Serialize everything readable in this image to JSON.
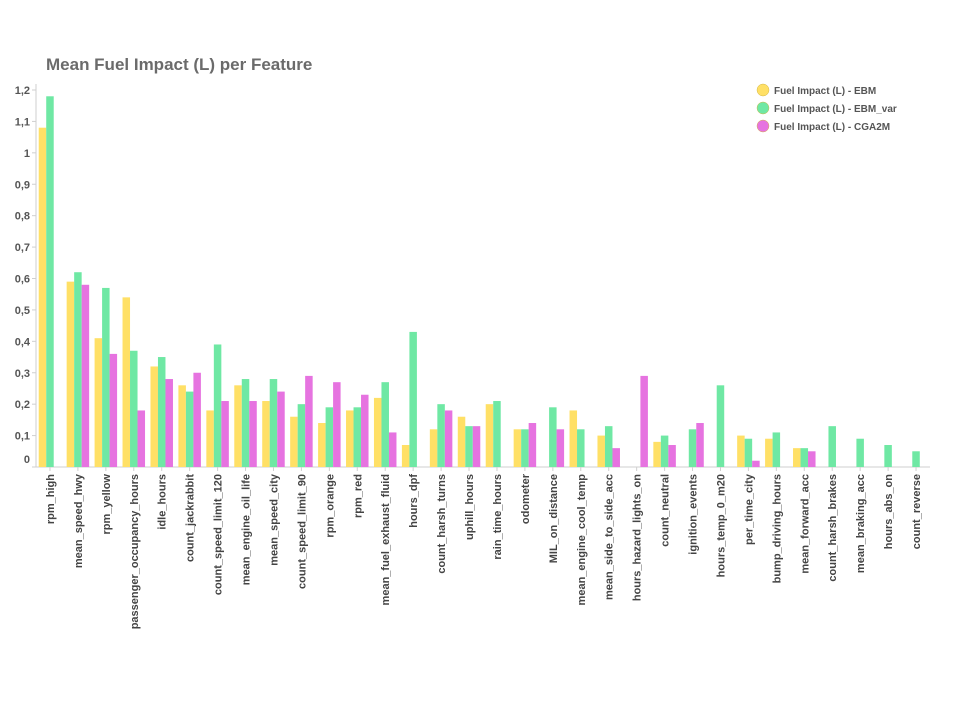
{
  "chart_data": {
    "type": "bar",
    "title": "Mean Fuel Impact (L) per Feature",
    "xlabel": "",
    "ylabel": "",
    "ylim": [
      0,
      1.2
    ],
    "yticks": [
      "0",
      "0,1",
      "0,2",
      "0,3",
      "0,4",
      "0,5",
      "0,6",
      "0,7",
      "0,8",
      "0,9",
      "1",
      "1,1",
      "1,2"
    ],
    "grid": false,
    "legend_position": "top-right",
    "categories": [
      "rpm_high",
      "mean_speed_hwy",
      "rpm_yellow",
      "passenger_occupancy_hours",
      "idle_hours",
      "count_jackrabbit",
      "count_speed_limit_120",
      "mean_engine_oil_life",
      "mean_speed_city",
      "count_speed_limit_90",
      "rpm_orange",
      "rpm_red",
      "mean_fuel_exhaust_fluid",
      "hours_dpf",
      "count_harsh_turns",
      "uphill_hours",
      "rain_time_hours",
      "odometer",
      "MIL_on_distance",
      "mean_engine_cool_temp",
      "mean_side_to_side_acc",
      "hours_hazard_lights_on",
      "count_neutral",
      "ignition_events",
      "hours_temp_0_m20",
      "per_time_city",
      "bump_driving_hours",
      "mean_forward_acc",
      "count_harsh_brakes",
      "mean_braking_acc",
      "hours_abs_on",
      "count_reverse"
    ],
    "series": [
      {
        "name": "Fuel Impact (L) - EBM",
        "color": "#ffe066",
        "values": [
          1.08,
          0.59,
          0.41,
          0.54,
          0.32,
          0.26,
          0.18,
          0.26,
          0.21,
          0.16,
          0.14,
          0.18,
          0.22,
          0.07,
          0.12,
          0.16,
          0.2,
          0.12,
          0,
          0.18,
          0.1,
          0,
          0.08,
          0,
          0,
          0.1,
          0.09,
          0.06,
          0,
          0,
          0,
          0
        ]
      },
      {
        "name": "Fuel Impact (L) - EBM_var",
        "color": "#6fe8a4",
        "values": [
          1.18,
          0.62,
          0.57,
          0.37,
          0.35,
          0.24,
          0.39,
          0.28,
          0.28,
          0.2,
          0.19,
          0.19,
          0.27,
          0.43,
          0.2,
          0.13,
          0.21,
          0.12,
          0.19,
          0.12,
          0.13,
          0,
          0.1,
          0.12,
          0.26,
          0.09,
          0.11,
          0.06,
          0.13,
          0.09,
          0.07,
          0.05
        ]
      },
      {
        "name": "Fuel Impact (L) - CGA2M",
        "color": "#e673e0",
        "values": [
          0,
          0.58,
          0.36,
          0.18,
          0.28,
          0.3,
          0.21,
          0.21,
          0.24,
          0.29,
          0.27,
          0.23,
          0.11,
          0,
          0.18,
          0.13,
          0,
          0.14,
          0.12,
          0,
          0.06,
          0.29,
          0.07,
          0.14,
          0,
          0.02,
          0,
          0.05,
          0,
          0,
          0,
          0
        ]
      }
    ]
  }
}
